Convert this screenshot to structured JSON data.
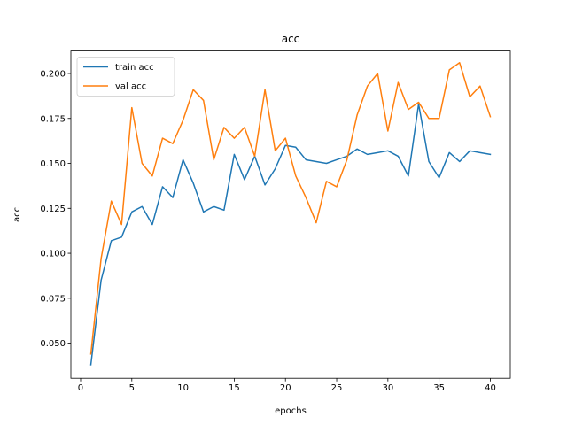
{
  "chart_data": {
    "type": "line",
    "title": "acc",
    "xlabel": "epochs",
    "ylabel": "acc",
    "xlim": [
      -0.95,
      41.95
    ],
    "ylim": [
      0.0305,
      0.2125
    ],
    "xticks": [
      0,
      5,
      10,
      15,
      20,
      25,
      30,
      35,
      40
    ],
    "yticks": [
      0.05,
      0.075,
      0.1,
      0.125,
      0.15,
      0.175,
      0.2
    ],
    "ytick_labels": [
      "0.050",
      "0.075",
      "0.100",
      "0.125",
      "0.150",
      "0.175",
      "0.200"
    ],
    "grid": false,
    "legend": "top-left",
    "x": [
      1,
      2,
      3,
      4,
      5,
      6,
      7,
      8,
      9,
      10,
      11,
      12,
      13,
      14,
      15,
      16,
      17,
      18,
      19,
      20,
      21,
      22,
      23,
      24,
      25,
      26,
      27,
      28,
      29,
      30,
      31,
      32,
      33,
      34,
      35,
      36,
      37,
      38,
      39,
      40
    ],
    "series": [
      {
        "name": "train acc",
        "color": "#1f77b4",
        "values": [
          0.038,
          0.085,
          0.107,
          0.109,
          0.123,
          0.126,
          0.116,
          0.137,
          0.131,
          0.152,
          0.139,
          0.123,
          0.126,
          0.124,
          0.155,
          0.141,
          0.154,
          0.138,
          0.147,
          0.16,
          0.159,
          0.152,
          0.151,
          0.15,
          0.152,
          0.154,
          0.158,
          0.155,
          0.156,
          0.157,
          0.154,
          0.143,
          0.183,
          0.151,
          0.142,
          0.156,
          0.151,
          0.157,
          0.156,
          0.155
        ]
      },
      {
        "name": "val acc",
        "color": "#ff7f0e",
        "values": [
          0.044,
          0.097,
          0.129,
          0.116,
          0.181,
          0.15,
          0.143,
          0.164,
          0.161,
          0.174,
          0.191,
          0.185,
          0.152,
          0.17,
          0.164,
          0.17,
          0.154,
          0.191,
          0.157,
          0.164,
          0.143,
          0.131,
          0.117,
          0.14,
          0.137,
          0.152,
          0.177,
          0.193,
          0.2,
          0.168,
          0.195,
          0.18,
          0.184,
          0.175,
          0.175,
          0.202,
          0.206,
          0.187,
          0.193,
          0.176
        ]
      }
    ]
  }
}
